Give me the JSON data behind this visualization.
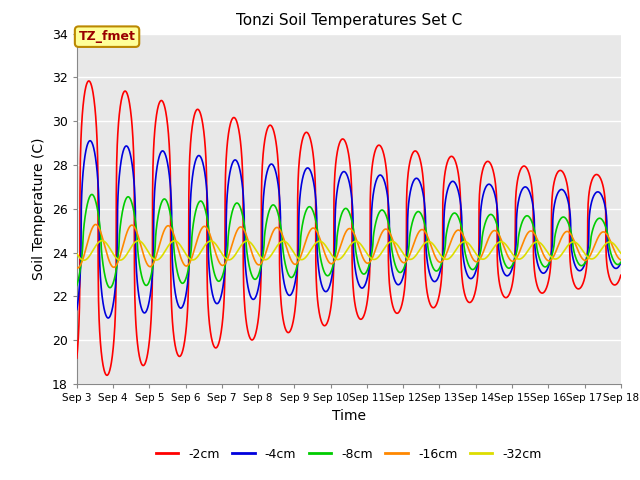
{
  "title": "Tonzi Soil Temperatures Set C",
  "xlabel": "Time",
  "ylabel": "Soil Temperature (C)",
  "ylim": [
    18,
    34
  ],
  "xlim_days": [
    3,
    18
  ],
  "xtick_labels": [
    "Sep 3",
    "Sep 4",
    "Sep 5",
    "Sep 6",
    "Sep 7",
    "Sep 8",
    "Sep 9",
    "Sep 10",
    "Sep 11",
    "Sep 12",
    "Sep 13",
    "Sep 14",
    "Sep 15",
    "Sep 16",
    "Sep 17",
    "Sep 18"
  ],
  "series_order": [
    "-2cm",
    "-4cm",
    "-8cm",
    "-16cm",
    "-32cm"
  ],
  "series": {
    "-2cm": {
      "color": "#ff0000",
      "lw": 1.2,
      "amplitude": 7.0,
      "mean": 25.0,
      "phase": 0.55,
      "decay": 0.07,
      "sharp": 3.5
    },
    "-4cm": {
      "color": "#0000dd",
      "lw": 1.2,
      "amplitude": 4.2,
      "mean": 25.0,
      "phase": 0.75,
      "decay": 0.06,
      "sharp": 2.5
    },
    "-8cm": {
      "color": "#00cc00",
      "lw": 1.2,
      "amplitude": 2.2,
      "mean": 24.5,
      "phase": 1.05,
      "decay": 0.05,
      "sharp": 1.5
    },
    "-16cm": {
      "color": "#ff8800",
      "lw": 1.2,
      "amplitude": 1.0,
      "mean": 24.3,
      "phase": 1.7,
      "decay": 0.03,
      "sharp": 1.0
    },
    "-32cm": {
      "color": "#dddd00",
      "lw": 1.2,
      "amplitude": 0.45,
      "mean": 24.1,
      "phase": 2.8,
      "decay": 0.01,
      "sharp": 1.0
    }
  },
  "bg_color": "#e8e8e8",
  "plot_bg": "#e8e8e8",
  "annotation_text": "TZ_fmet",
  "annotation_bg": "#ffff99",
  "annotation_border": "#bb8800",
  "annotation_text_color": "#990000"
}
